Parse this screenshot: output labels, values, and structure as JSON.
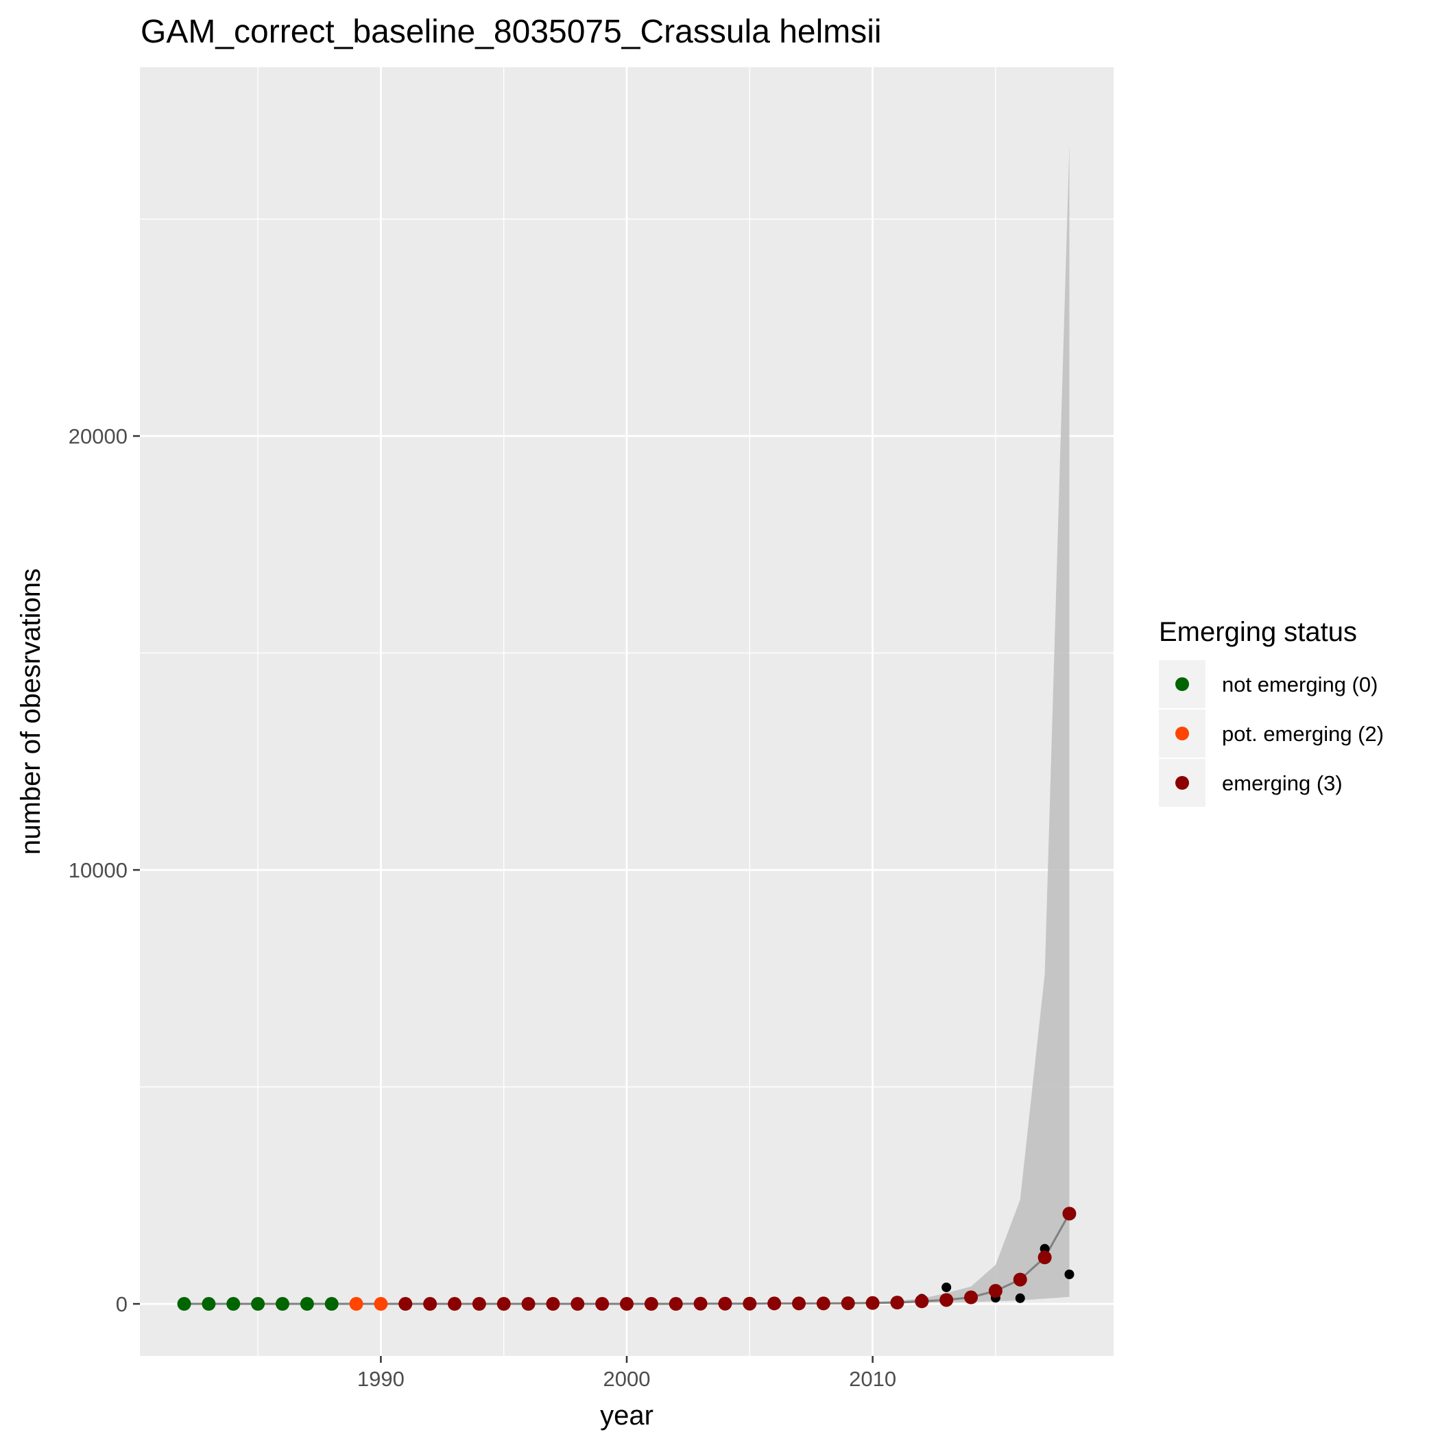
{
  "chart_data": {
    "type": "scatter",
    "title": "GAM_correct_baseline_8035075_Crassula helmsii",
    "xlabel": "year",
    "ylabel": "number of obesrvations",
    "xlim": [
      1980.2,
      2019.8
    ],
    "ylim": [
      -1200,
      28500
    ],
    "x_ticks": [
      1990,
      2000,
      2010
    ],
    "y_ticks": [
      0,
      10000,
      20000
    ],
    "grid": true,
    "legend": {
      "title": "Emerging status",
      "position": "right",
      "entries": [
        {
          "label": "not emerging (0)",
          "color": "#006400"
        },
        {
          "label": "pot. emerging (2)",
          "color": "#FF4500"
        },
        {
          "label": "emerging (3)",
          "color": "#8B0000"
        }
      ]
    },
    "observed": {
      "color": "#000000",
      "x": [
        1982,
        1983,
        1984,
        1985,
        1986,
        1987,
        1988,
        1989,
        1990,
        1991,
        1992,
        1993,
        1994,
        1995,
        1996,
        1997,
        1998,
        1999,
        2000,
        2001,
        2002,
        2003,
        2004,
        2005,
        2006,
        2007,
        2008,
        2009,
        2010,
        2011,
        2012,
        2013,
        2014,
        2015,
        2016,
        2017,
        2018
      ],
      "y": [
        0,
        0,
        0,
        0,
        0,
        0,
        0,
        0,
        0,
        0,
        0,
        0,
        0,
        0,
        0,
        0,
        0,
        0,
        0,
        5,
        5,
        10,
        10,
        10,
        15,
        15,
        20,
        20,
        30,
        50,
        120,
        380,
        130,
        140,
        130,
        1270,
        680
      ]
    },
    "fit": {
      "color": "#808080",
      "x": [
        1982,
        1983,
        1984,
        1985,
        1986,
        1987,
        1988,
        1989,
        1990,
        1991,
        1992,
        1993,
        1994,
        1995,
        1996,
        1997,
        1998,
        1999,
        2000,
        2001,
        2002,
        2003,
        2004,
        2005,
        2006,
        2007,
        2008,
        2009,
        2010,
        2011,
        2012,
        2013,
        2014,
        2015,
        2016,
        2017,
        2018
      ],
      "y": [
        0,
        0,
        0,
        0,
        0,
        0,
        0,
        0,
        0,
        0,
        0,
        0,
        0,
        0,
        0,
        0,
        0,
        0,
        0,
        0,
        0,
        5,
        5,
        5,
        10,
        10,
        10,
        15,
        20,
        30,
        60,
        90,
        150,
        300,
        560,
        1070,
        2080
      ],
      "status": [
        0,
        0,
        0,
        0,
        0,
        0,
        0,
        2,
        2,
        3,
        3,
        3,
        3,
        3,
        3,
        3,
        3,
        3,
        3,
        3,
        3,
        3,
        3,
        3,
        3,
        3,
        3,
        3,
        3,
        3,
        3,
        3,
        3,
        3,
        3,
        3,
        3
      ],
      "lower": [
        0,
        0,
        0,
        0,
        0,
        0,
        0,
        0,
        0,
        0,
        0,
        0,
        0,
        0,
        0,
        0,
        0,
        0,
        0,
        0,
        0,
        0,
        0,
        0,
        0,
        0,
        0,
        0,
        5,
        10,
        20,
        30,
        40,
        60,
        80,
        120,
        160
      ],
      "upper": [
        0,
        0,
        0,
        0,
        0,
        0,
        0,
        0,
        0,
        0,
        0,
        0,
        0,
        0,
        0,
        0,
        0,
        0,
        0,
        0,
        0,
        10,
        10,
        10,
        20,
        20,
        30,
        40,
        50,
        70,
        120,
        250,
        400,
        900,
        2400,
        7600,
        26700
      ]
    }
  }
}
